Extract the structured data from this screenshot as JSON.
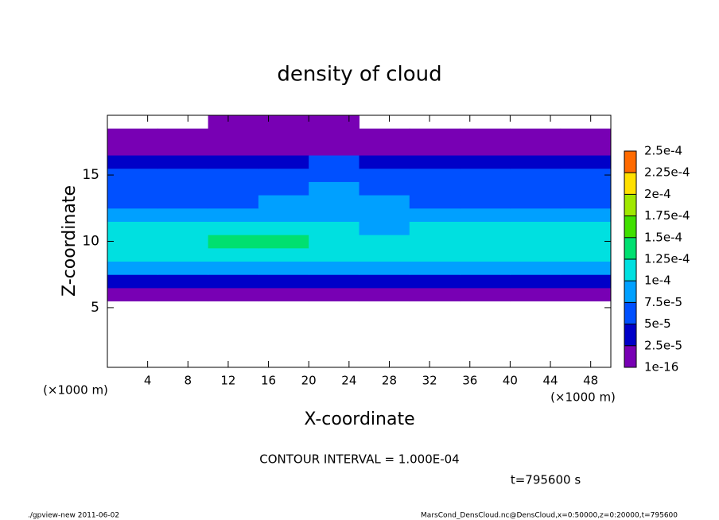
{
  "chart_data": {
    "type": "heatmap",
    "title": "density of cloud",
    "xlabel": "X-coordinate",
    "ylabel": "Z-coordinate",
    "x_unit": "(×1000 m)",
    "annotation": "CONTOUR INTERVAL = 1.000E-04",
    "time_label": "t=795600 s",
    "footer_left": "./gpview-new  2011-06-02",
    "footer_right": "MarsCond_DensCloud.nc@DensCloud,x=0:50000,z=0:20000,t=795600",
    "xlim": [
      0,
      50
    ],
    "ylim": [
      0.5,
      19.5
    ],
    "xticks": [
      4,
      8,
      12,
      16,
      20,
      24,
      28,
      32,
      36,
      40,
      44,
      48
    ],
    "yticks": [
      5,
      10,
      15
    ],
    "x": [
      2.5,
      7.5,
      12.5,
      17.5,
      22.5,
      27.5,
      32.5,
      37.5,
      42.5,
      47.5
    ],
    "z": [
      6,
      7,
      8,
      9,
      10,
      11,
      12,
      13,
      14,
      15,
      16,
      17,
      18,
      19
    ],
    "values": [
      [
        1e-05,
        1e-05,
        1e-05,
        1e-05,
        1e-05,
        1e-05,
        1e-05,
        1e-05,
        1e-05,
        1e-05
      ],
      [
        4e-05,
        4e-05,
        3e-05,
        4e-05,
        4e-05,
        4e-05,
        4e-05,
        3e-05,
        4e-05,
        4e-05
      ],
      [
        8e-05,
        8.5e-05,
        8e-05,
        8.5e-05,
        8.5e-05,
        8e-05,
        8e-05,
        8e-05,
        8.5e-05,
        8e-05
      ],
      [
        0.00011,
        0.000115,
        0.000115,
        0.00012,
        0.000115,
        0.000105,
        0.000105,
        0.00011,
        0.000105,
        0.000105
      ],
      [
        0.000115,
        0.00012,
        0.000125,
        0.00013,
        0.00012,
        0.00011,
        0.00011,
        0.00011,
        0.00011,
        0.000105
      ],
      [
        0.000105,
        0.00011,
        0.00011,
        0.000115,
        0.00011,
        9e-05,
        0.0001,
        0.000105,
        0.000105,
        0.0001
      ],
      [
        8e-05,
        8.5e-05,
        9e-05,
        9e-05,
        9e-05,
        8e-05,
        7.5e-05,
        8e-05,
        8.5e-05,
        9e-05
      ],
      [
        7e-05,
        7e-05,
        7e-05,
        7.5e-05,
        8e-05,
        8e-05,
        5.5e-05,
        5.5e-05,
        6e-05,
        7e-05
      ],
      [
        6e-05,
        6.5e-05,
        6e-05,
        6.5e-05,
        8e-05,
        7e-05,
        5e-05,
        5e-05,
        5.5e-05,
        6e-05
      ],
      [
        5.5e-05,
        6e-05,
        5.5e-05,
        6e-05,
        7e-05,
        5.5e-05,
        5e-05,
        5e-05,
        5e-05,
        5.5e-05
      ],
      [
        4e-05,
        4.5e-05,
        4e-05,
        4.5e-05,
        5e-05,
        4e-05,
        4e-05,
        4e-05,
        4e-05,
        4e-05
      ],
      [
        2e-05,
        2e-05,
        2e-05,
        2e-05,
        2e-05,
        2e-05,
        2e-05,
        2e-05,
        2e-05,
        2e-05
      ],
      [
        1e-05,
        1e-05,
        1e-05,
        1e-05,
        1e-05,
        1e-05,
        1e-05,
        1e-05,
        1e-05,
        1e-05
      ],
      [
        null,
        null,
        1e-05,
        1e-05,
        1e-05,
        null,
        null,
        null,
        null,
        null
      ]
    ],
    "levels": [
      {
        "value": 1e-16,
        "label": "1e-16"
      },
      {
        "value": 2.5e-05,
        "label": "2.5e-5"
      },
      {
        "value": 5e-05,
        "label": "5e-5"
      },
      {
        "value": 7.5e-05,
        "label": "7.5e-5"
      },
      {
        "value": 0.0001,
        "label": "1e-4"
      },
      {
        "value": 0.000125,
        "label": "1.25e-4"
      },
      {
        "value": 0.00015,
        "label": "1.5e-4"
      },
      {
        "value": 0.000175,
        "label": "1.75e-4"
      },
      {
        "value": 0.0002,
        "label": "2e-4"
      },
      {
        "value": 0.000225,
        "label": "2.25e-4"
      },
      {
        "value": 0.00025,
        "label": "2.5e-4"
      }
    ],
    "colors": [
      "#7800b4",
      "#0000c8",
      "#0050ff",
      "#00a0ff",
      "#00e0e0",
      "#00e070",
      "#40e000",
      "#a0e800",
      "#ffe000",
      "#ff6a00"
    ]
  }
}
